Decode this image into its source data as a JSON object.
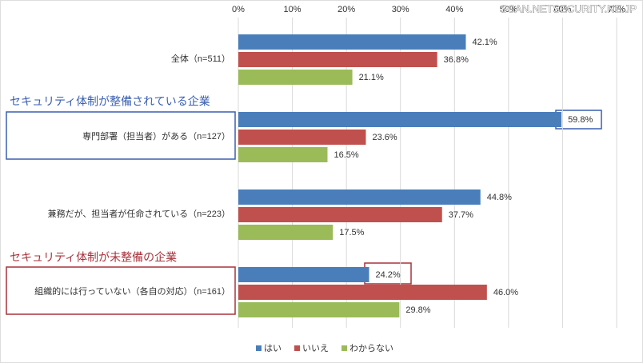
{
  "chart_data": {
    "type": "bar",
    "orientation": "horizontal",
    "categories": [
      "全体（n=511）",
      "専門部署（担当者）がある（n=127）",
      "兼務だが、担当者が任命されている（n=223）",
      "組織的には行っていない（各自の対応）（n=161）"
    ],
    "series": [
      {
        "name": "はい",
        "color": "#4a7ebb",
        "values": [
          42.1,
          59.8,
          44.8,
          24.2
        ],
        "value_labels": [
          "42.1%",
          "59.8%",
          "44.8%",
          "24.2%"
        ]
      },
      {
        "name": "いいえ",
        "color": "#c0504d",
        "values": [
          36.8,
          23.6,
          37.7,
          46.0
        ],
        "value_labels": [
          "36.8%",
          "23.6%",
          "37.7%",
          "46.0%"
        ]
      },
      {
        "name": "わからない",
        "color": "#9bbb59",
        "values": [
          21.1,
          16.5,
          17.5,
          29.8
        ],
        "value_labels": [
          "21.1%",
          "16.5%",
          "17.5%",
          "29.8%"
        ]
      }
    ],
    "xlim": [
      0,
      70
    ],
    "xticks": [
      {
        "value": 0,
        "label": "0%"
      },
      {
        "value": 10,
        "label": "10%"
      },
      {
        "value": 20,
        "label": "20%"
      },
      {
        "value": 30,
        "label": "30%"
      },
      {
        "value": 40,
        "label": "40%"
      },
      {
        "value": 50,
        "label": "50%"
      },
      {
        "value": 60,
        "label": "60%"
      },
      {
        "value": 70,
        "label": "70%"
      }
    ],
    "grid": true,
    "legend": "bottom",
    "annotations": [
      "セキュリティ体制が整備されている企業",
      "セキュリティ体制が未整備の企業"
    ],
    "watermark": "SCAN.NETSECURITY.NE.JP"
  }
}
